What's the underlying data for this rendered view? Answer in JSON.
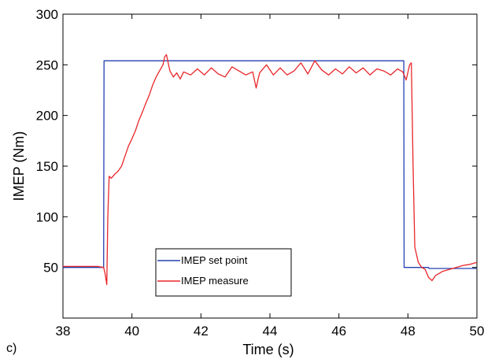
{
  "chart_data": {
    "type": "line",
    "panel_label": "c)",
    "xlabel": "Time (s)",
    "ylabel": "IMEP (Nm)",
    "xlim": [
      38,
      50
    ],
    "ylim": [
      0,
      300
    ],
    "xticks": [
      38,
      40,
      42,
      44,
      46,
      48,
      50
    ],
    "yticks": [
      50,
      100,
      150,
      200,
      250,
      300
    ],
    "grid": false,
    "legend_position": "bottom-center",
    "series": [
      {
        "name": "IMEP set point",
        "color": "#2440b0",
        "x": [
          38.0,
          39.18,
          39.19,
          47.88,
          47.89,
          48.6,
          48.61,
          50.0
        ],
        "y": [
          50,
          50,
          254,
          254,
          50,
          50,
          49,
          49
        ]
      },
      {
        "name": "IMEP measure",
        "color": "#e8262a",
        "x": [
          38.0,
          38.5,
          39.0,
          39.18,
          39.22,
          39.27,
          39.3,
          39.34,
          39.4,
          39.5,
          39.6,
          39.7,
          39.8,
          39.9,
          40.0,
          40.1,
          40.2,
          40.3,
          40.4,
          40.5,
          40.6,
          40.7,
          40.8,
          40.9,
          40.95,
          41.0,
          41.05,
          41.1,
          41.2,
          41.3,
          41.4,
          41.5,
          41.7,
          41.9,
          42.1,
          42.3,
          42.5,
          42.7,
          42.9,
          43.1,
          43.3,
          43.5,
          43.6,
          43.65,
          43.7,
          43.9,
          44.1,
          44.3,
          44.5,
          44.7,
          44.9,
          45.1,
          45.3,
          45.5,
          45.7,
          45.9,
          46.1,
          46.3,
          46.5,
          46.7,
          46.9,
          47.1,
          47.3,
          47.5,
          47.7,
          47.85,
          47.95,
          48.05,
          48.1,
          48.15,
          48.2,
          48.3,
          48.4,
          48.5,
          48.6,
          48.7,
          48.8,
          48.9,
          49.0,
          49.2,
          49.4,
          49.6,
          49.8,
          50.0
        ],
        "y": [
          51,
          51,
          51,
          50,
          44,
          33,
          100,
          140,
          138,
          142,
          145,
          150,
          160,
          170,
          177,
          185,
          195,
          203,
          212,
          220,
          230,
          238,
          244,
          250,
          258,
          260,
          252,
          244,
          238,
          242,
          236,
          243,
          240,
          246,
          240,
          247,
          241,
          238,
          248,
          244,
          240,
          243,
          227,
          235,
          242,
          250,
          240,
          247,
          240,
          244,
          252,
          241,
          254,
          245,
          240,
          246,
          241,
          248,
          242,
          247,
          240,
          246,
          244,
          240,
          246,
          243,
          235,
          250,
          252,
          150,
          70,
          55,
          50,
          48,
          40,
          37,
          42,
          44,
          46,
          48,
          50,
          52,
          53,
          55
        ]
      }
    ]
  }
}
